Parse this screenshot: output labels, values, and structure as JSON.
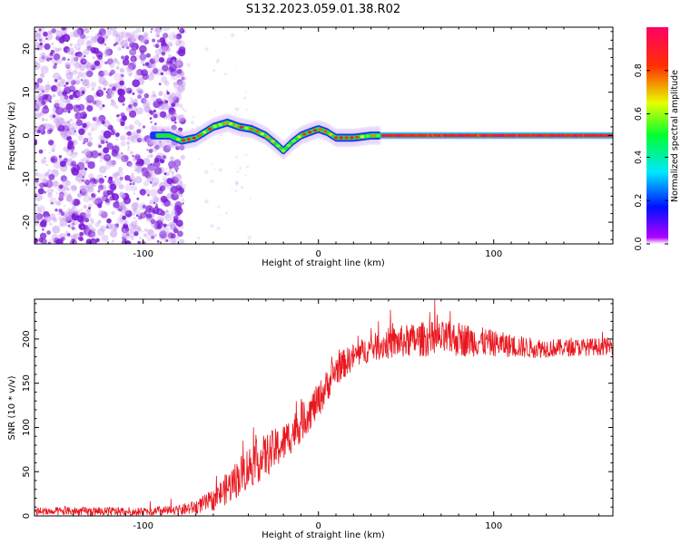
{
  "title": "S132.2023.059.01.38.R02",
  "chart_data": [
    {
      "type": "heatmap",
      "xlabel": "Height of straight line (km)",
      "ylabel": "Frequency (Hz)",
      "xlim": [
        -162,
        168
      ],
      "ylim": [
        -25,
        25
      ],
      "x_ticks": [
        -100,
        0,
        100
      ],
      "x_tick_labels": [
        "-100",
        "0",
        "100"
      ],
      "y_ticks": [
        -20,
        -10,
        0,
        10,
        20
      ],
      "y_tick_labels": [
        "-20",
        "-10",
        "0",
        "10",
        "20"
      ],
      "colorbar": {
        "label": "Normalized spectral amplitude",
        "range": [
          0,
          1
        ],
        "ticks": [
          0,
          0.2,
          0.4,
          0.6,
          0.8
        ],
        "tick_labels": [
          "0.0",
          "0.2",
          "0.4",
          "0.6",
          "0.8"
        ],
        "colormap": "gist_rainbow_r"
      },
      "ridge": {
        "description_points_x": [
          -95,
          -85,
          -78,
          -70,
          -60,
          -52,
          -45,
          -38,
          -30,
          -24,
          -20,
          -15,
          -10,
          -5,
          0,
          5,
          10,
          20,
          30,
          35,
          50,
          100,
          168
        ],
        "frequency_hz": [
          0,
          0,
          -1.2,
          -0.5,
          2,
          3,
          2,
          1.5,
          0,
          -2,
          -3.5,
          -1.5,
          0,
          0.8,
          1.5,
          0.8,
          -0.5,
          -0.5,
          0,
          0,
          0,
          0,
          0
        ]
      }
    },
    {
      "type": "line",
      "xlabel": "Height of straight line (km)",
      "ylabel": "SNR (10 * v/v)",
      "xlim": [
        -162,
        168
      ],
      "ylim": [
        0,
        245
      ],
      "x_ticks": [
        -100,
        0,
        100
      ],
      "x_tick_labels": [
        "-100",
        "0",
        "100"
      ],
      "y_ticks": [
        0,
        50,
        100,
        150,
        200
      ],
      "y_tick_labels": [
        "0",
        "50",
        "100",
        "150",
        "200"
      ],
      "series": [
        {
          "color": "#e8171e",
          "trend_x": [
            -162,
            -140,
            -120,
            -100,
            -80,
            -70,
            -60,
            -50,
            -40,
            -30,
            -20,
            -10,
            0,
            10,
            20,
            30,
            40,
            60,
            80,
            100,
            120,
            140,
            168
          ],
          "trend_y": [
            5,
            5,
            5,
            5,
            6,
            10,
            18,
            35,
            55,
            68,
            82,
            105,
            130,
            165,
            180,
            190,
            195,
            200,
            200,
            195,
            190,
            190,
            192
          ],
          "noise_amplitude": [
            5,
            5,
            5,
            5,
            6,
            8,
            12,
            20,
            25,
            25,
            22,
            22,
            20,
            18,
            15,
            15,
            18,
            20,
            20,
            15,
            12,
            10,
            10
          ]
        }
      ]
    }
  ],
  "colors": {
    "line": "#e8171e",
    "ridge_peak": "#ff0000",
    "scatter": "#7c1ed8"
  }
}
